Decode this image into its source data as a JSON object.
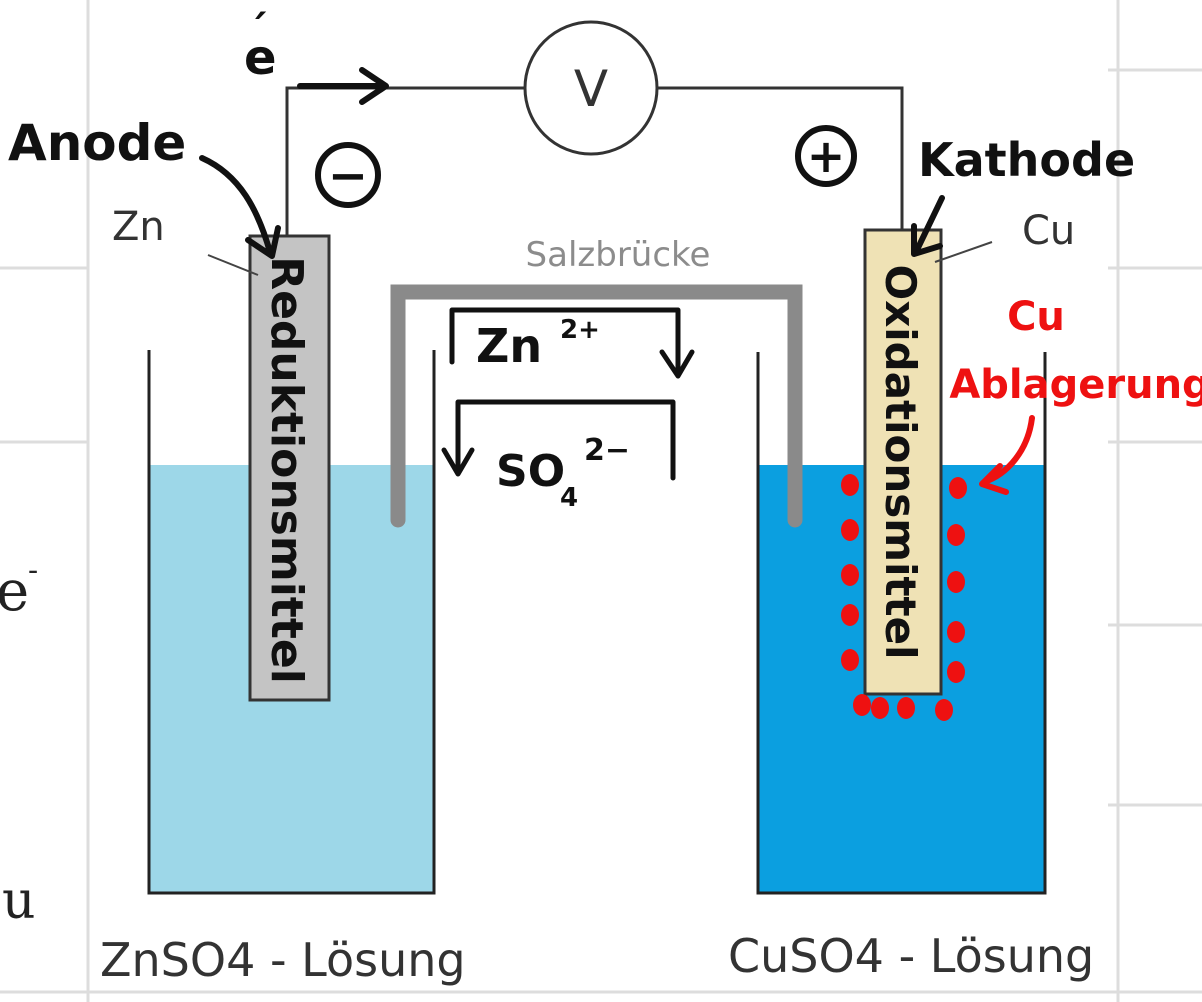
{
  "labels": {
    "voltmeter": "V",
    "electron": "e",
    "electron_mark": "´",
    "anode": "Anode",
    "kathode": "Kathode",
    "minus": "−",
    "plus": "+",
    "zn": "Zn",
    "cu": "Cu",
    "salt_bridge": "Salzbrücke",
    "zn_ion": "Zn",
    "zn_charge": "2+",
    "so4_base": "SO",
    "so4_sub": "4",
    "so4_charge": "2−",
    "reduktionsmittel": "Reduktionsmittel",
    "oxidationsmittel": "Oxidationsmittel",
    "cu_deposit_1": "Cu",
    "cu_deposit_2": "Ablagerung",
    "znso4": "ZnSO4 - Lösung",
    "cuso4": "CuSO4 - Lösung",
    "edge_e": "e",
    "edge_e_sup": "-",
    "edge_u": "u"
  },
  "colors": {
    "zn_solution": "#9dd7e8",
    "cu_solution": "#0b9fe0",
    "zn_electrode": "#c4c4c4",
    "cu_electrode": "#efe2b5",
    "salt_bridge": "#8a8a8a",
    "deposit": "#ee1111",
    "grid": "#d9d9d9"
  }
}
